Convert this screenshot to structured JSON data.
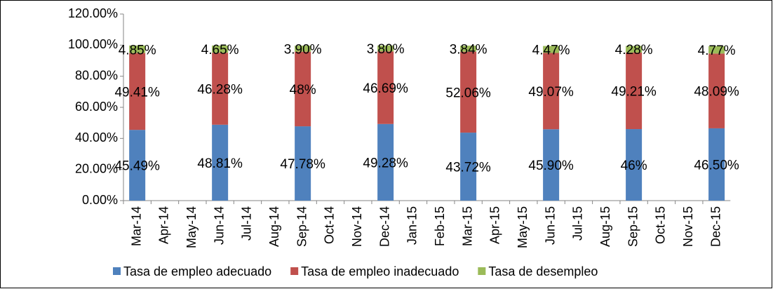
{
  "chart_data": {
    "type": "stacked_bar",
    "categories": [
      "Mar-14",
      "Apr-14",
      "May-14",
      "Jun-14",
      "Jul-14",
      "Aug-14",
      "Sep-14",
      "Oct-14",
      "Nov-14",
      "Dec-14",
      "Jan-15",
      "Feb-15",
      "Mar-15",
      "Apr-15",
      "May-15",
      "Jun-15",
      "Jul-15",
      "Aug-15",
      "Sep-15",
      "Oct-15",
      "Nov-15",
      "Dec-15"
    ],
    "series": [
      {
        "name": "Tasa de empleo adecuado",
        "color": "#4f81bd",
        "values": [
          45.49,
          null,
          null,
          48.81,
          null,
          null,
          47.78,
          null,
          null,
          49.28,
          null,
          null,
          43.72,
          null,
          null,
          45.9,
          null,
          null,
          46,
          null,
          null,
          46.5
        ],
        "value_labels": [
          "45.49%",
          null,
          null,
          "48.81%",
          null,
          null,
          "47.78%",
          null,
          null,
          "49.28%",
          null,
          null,
          "43.72%",
          null,
          null,
          "45.90%",
          null,
          null,
          "46%",
          null,
          null,
          "46.50%"
        ]
      },
      {
        "name": "Tasa de empleo inadecuado",
        "color": "#c0504d",
        "values": [
          49.41,
          null,
          null,
          46.28,
          null,
          null,
          48,
          null,
          null,
          46.69,
          null,
          null,
          52.06,
          null,
          null,
          49.07,
          null,
          null,
          49.21,
          null,
          null,
          48.09
        ],
        "value_labels": [
          "49.41%",
          null,
          null,
          "46.28%",
          null,
          null,
          "48%",
          null,
          null,
          "46.69%",
          null,
          null,
          "52.06%",
          null,
          null,
          "49.07%",
          null,
          null,
          "49.21%",
          null,
          null,
          "48.09%"
        ]
      },
      {
        "name": "Tasa de desempleo",
        "color": "#9bbb59",
        "values": [
          4.85,
          null,
          null,
          4.65,
          null,
          null,
          3.9,
          null,
          null,
          3.8,
          null,
          null,
          3.84,
          null,
          null,
          4.47,
          null,
          null,
          4.28,
          null,
          null,
          4.77
        ],
        "value_labels": [
          "4.85%",
          null,
          null,
          "4.65%",
          null,
          null,
          "3.90%",
          null,
          null,
          "3.80%",
          null,
          null,
          "3.84%",
          null,
          null,
          "4.47%",
          null,
          null,
          "4.28%",
          null,
          null,
          "4.77%"
        ]
      }
    ],
    "ylim": [
      0,
      120
    ],
    "yticks": [
      {
        "value": 0,
        "label": "0.00%"
      },
      {
        "value": 20,
        "label": "20.00%"
      },
      {
        "value": 40,
        "label": "40.00%"
      },
      {
        "value": 60,
        "label": "60.00%"
      },
      {
        "value": 80,
        "label": "80.00%"
      },
      {
        "value": 100,
        "label": "100.00%"
      },
      {
        "value": 120,
        "label": "120.00%"
      }
    ],
    "grid": false,
    "legend": "bottom"
  }
}
